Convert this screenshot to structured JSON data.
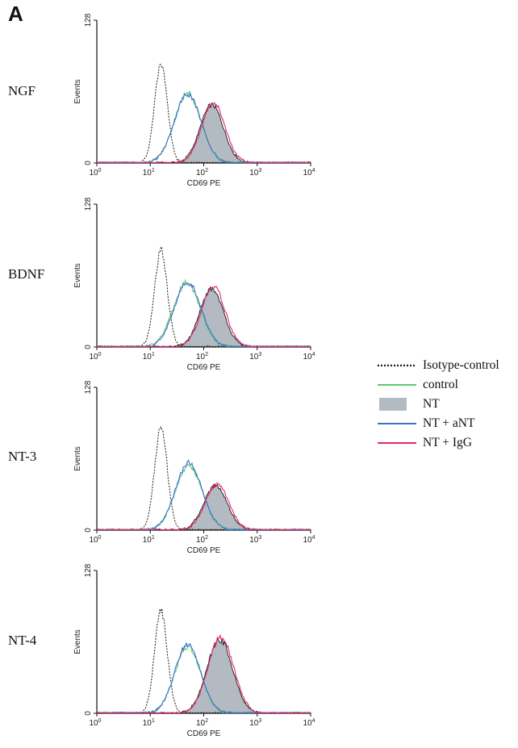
{
  "figure": {
    "panel_letter": "A"
  },
  "colors": {
    "isotype": "#1a1a1a",
    "control": "#5cc96e",
    "nt_fill": "#b4bac2",
    "nt_line": "#1a1a1a",
    "nt_antibody": "#3a6fd0",
    "nt_igg": "#e2296e"
  },
  "legend": [
    {
      "key": "isotype",
      "label": "Isotype-control",
      "style": "dotted"
    },
    {
      "key": "control",
      "label": "control",
      "style": "line"
    },
    {
      "key": "nt",
      "label": "NT",
      "style": "filled"
    },
    {
      "key": "nt_antibody",
      "label": "NT + aNT",
      "style": "line"
    },
    {
      "key": "nt_igg",
      "label": "NT + IgG",
      "style": "line"
    }
  ],
  "chart_data": [
    {
      "type": "area",
      "condition": "NGF",
      "ylabel": "Events",
      "xlabel": "CD69 PE",
      "ylim": [
        0,
        128
      ],
      "yticks": [
        "0",
        "128"
      ],
      "xscale": "log",
      "xlim_log10": [
        0,
        4
      ],
      "xticks": [
        {
          "base": "10",
          "exp": "0"
        },
        {
          "base": "10",
          "exp": "1"
        },
        {
          "base": "10",
          "exp": "2"
        },
        {
          "base": "10",
          "exp": "3"
        },
        {
          "base": "10",
          "exp": "4"
        }
      ],
      "series": [
        {
          "key": "isotype",
          "peak_log10": 1.2,
          "peak_events": 88,
          "width": 0.12
        },
        {
          "key": "control",
          "peak_log10": 1.7,
          "peak_events": 62,
          "width": 0.25
        },
        {
          "key": "nt_antibody",
          "peak_log10": 1.7,
          "peak_events": 62,
          "width": 0.25
        },
        {
          "key": "nt",
          "peak_log10": 2.15,
          "peak_events": 52,
          "width": 0.22
        },
        {
          "key": "nt_igg",
          "peak_log10": 2.18,
          "peak_events": 54,
          "width": 0.22
        }
      ]
    },
    {
      "type": "area",
      "condition": "BDNF",
      "ylabel": "Events",
      "xlabel": "CD69 PE",
      "ylim": [
        0,
        128
      ],
      "yticks": [
        "0",
        "128"
      ],
      "xscale": "log",
      "xlim_log10": [
        0,
        4
      ],
      "xticks": [
        {
          "base": "10",
          "exp": "0"
        },
        {
          "base": "10",
          "exp": "1"
        },
        {
          "base": "10",
          "exp": "2"
        },
        {
          "base": "10",
          "exp": "3"
        },
        {
          "base": "10",
          "exp": "4"
        }
      ],
      "series": [
        {
          "key": "isotype",
          "peak_log10": 1.2,
          "peak_events": 86,
          "width": 0.12
        },
        {
          "key": "control",
          "peak_log10": 1.68,
          "peak_events": 58,
          "width": 0.25
        },
        {
          "key": "nt_antibody",
          "peak_log10": 1.7,
          "peak_events": 58,
          "width": 0.25
        },
        {
          "key": "nt",
          "peak_log10": 2.15,
          "peak_events": 52,
          "width": 0.22
        },
        {
          "key": "nt_igg",
          "peak_log10": 2.18,
          "peak_events": 54,
          "width": 0.22
        }
      ]
    },
    {
      "type": "area",
      "condition": "NT-3",
      "ylabel": "Events",
      "xlabel": "CD69 PE",
      "ylim": [
        0,
        128
      ],
      "yticks": [
        "0",
        "128"
      ],
      "xscale": "log",
      "xlim_log10": [
        0,
        4
      ],
      "xticks": [
        {
          "base": "10",
          "exp": "0"
        },
        {
          "base": "10",
          "exp": "1"
        },
        {
          "base": "10",
          "exp": "2"
        },
        {
          "base": "10",
          "exp": "3"
        },
        {
          "base": "10",
          "exp": "4"
        }
      ],
      "series": [
        {
          "key": "isotype",
          "peak_log10": 1.2,
          "peak_events": 92,
          "width": 0.12
        },
        {
          "key": "control",
          "peak_log10": 1.72,
          "peak_events": 58,
          "width": 0.25
        },
        {
          "key": "nt_antibody",
          "peak_log10": 1.72,
          "peak_events": 60,
          "width": 0.25
        },
        {
          "key": "nt",
          "peak_log10": 2.22,
          "peak_events": 40,
          "width": 0.22
        },
        {
          "key": "nt_igg",
          "peak_log10": 2.25,
          "peak_events": 41,
          "width": 0.22
        }
      ]
    },
    {
      "type": "area",
      "condition": "NT-4",
      "ylabel": "Events",
      "xlabel": "CD69 PE",
      "ylim": [
        0,
        128
      ],
      "yticks": [
        "0",
        "128"
      ],
      "xscale": "log",
      "xlim_log10": [
        0,
        4
      ],
      "xticks": [
        {
          "base": "10",
          "exp": "0"
        },
        {
          "base": "10",
          "exp": "1"
        },
        {
          "base": "10",
          "exp": "2"
        },
        {
          "base": "10",
          "exp": "3"
        },
        {
          "base": "10",
          "exp": "4"
        }
      ],
      "series": [
        {
          "key": "isotype",
          "peak_log10": 1.2,
          "peak_events": 92,
          "width": 0.12
        },
        {
          "key": "control",
          "peak_log10": 1.7,
          "peak_events": 60,
          "width": 0.24
        },
        {
          "key": "nt_antibody",
          "peak_log10": 1.7,
          "peak_events": 62,
          "width": 0.24
        },
        {
          "key": "nt",
          "peak_log10": 2.3,
          "peak_events": 66,
          "width": 0.24
        },
        {
          "key": "nt_igg",
          "peak_log10": 2.32,
          "peak_events": 68,
          "width": 0.24
        }
      ]
    }
  ]
}
